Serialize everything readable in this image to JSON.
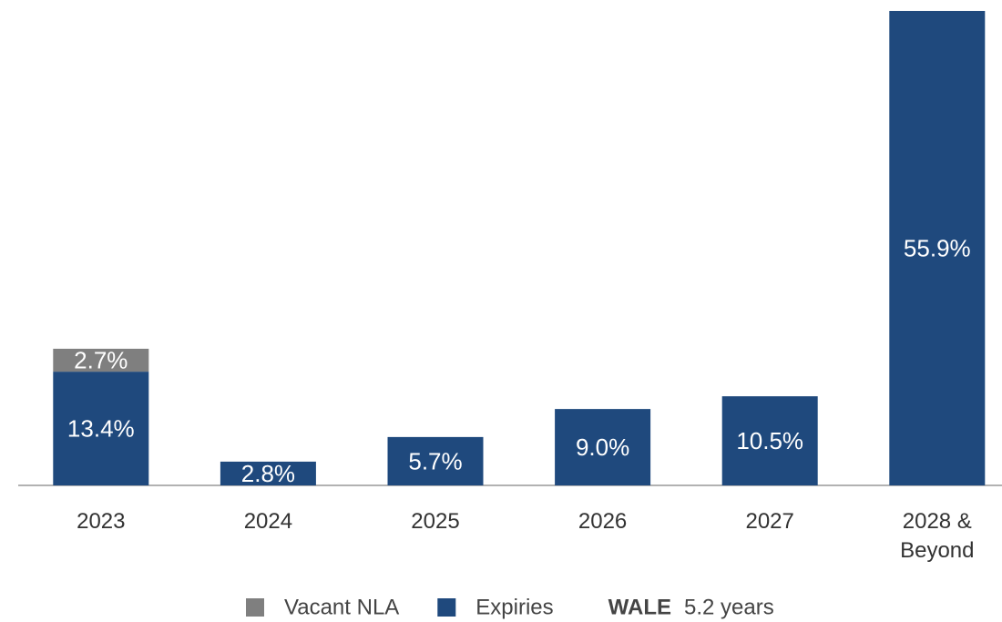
{
  "chart_data": {
    "type": "stacked_bar",
    "categories": [
      "2023",
      "2024",
      "2025",
      "2026",
      "2027",
      "2028 & Beyond"
    ],
    "series": [
      {
        "name": "Expiries",
        "color": "#1f497d",
        "values": [
          13.4,
          2.8,
          5.7,
          9.0,
          10.5,
          55.9
        ],
        "value_labels": [
          "13.4%",
          "2.8%",
          "5.7%",
          "9.0%",
          "10.5%",
          "55.9%"
        ]
      },
      {
        "name": "Vacant NLA",
        "color": "#7f7f7f",
        "values": [
          2.7,
          null,
          null,
          null,
          null,
          null
        ],
        "value_labels": [
          "2.7%",
          null,
          null,
          null,
          null,
          null
        ]
      }
    ],
    "legend_order": [
      1,
      0
    ],
    "wale_label": "WALE",
    "wale_value": "5.2 years"
  }
}
